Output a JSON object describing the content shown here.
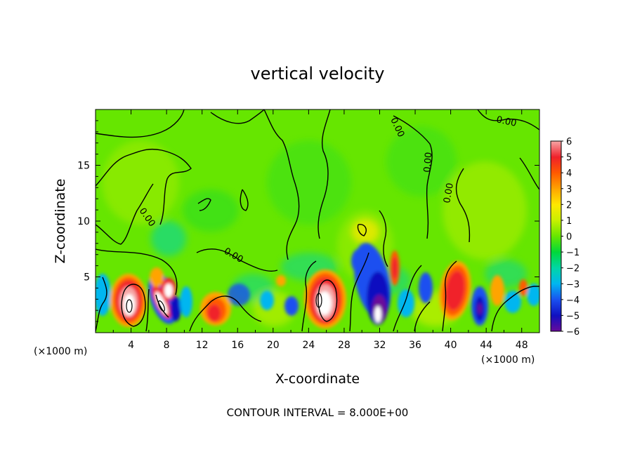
{
  "chart_data": {
    "type": "heatmap",
    "title": "vertical velocity",
    "xlabel": "X-coordinate",
    "ylabel": "Z-coordinate",
    "x_unit": "(×1000 m)",
    "xlim": [
      0,
      50
    ],
    "ylim": [
      0,
      20
    ],
    "x_ticks": [
      4,
      8,
      12,
      16,
      20,
      24,
      28,
      32,
      36,
      40,
      44,
      48
    ],
    "y_ticks": [
      5,
      10,
      15
    ],
    "contour_interval_label": "CONTOUR INTERVAL = 8.000E+00",
    "contour_labels": [
      "0.00",
      "0.00",
      "0.00",
      "0.00",
      "0.00",
      "0.00"
    ],
    "colorbar": {
      "levels": [
        "6",
        "5",
        "4",
        "3",
        "2",
        "1",
        "0",
        "−1",
        "−2",
        "−3",
        "−4",
        "−5",
        "−6"
      ],
      "colors": [
        "#f6a6a6",
        "#f0202a",
        "#ff5a00",
        "#ffa400",
        "#ffe800",
        "#c8f000",
        "#66e600",
        "#00d83a",
        "#00d6a6",
        "#00b6f0",
        "#1a50f0",
        "#1010c0",
        "#6a0a9a"
      ],
      "range": [
        -6,
        6
      ]
    },
    "features": [
      {
        "x": 4,
        "z": 2.5,
        "value": 6
      },
      {
        "x": 8,
        "z": 2.5,
        "value": 6
      },
      {
        "x": 9,
        "z": 3.2,
        "value": -4
      },
      {
        "x": 13.5,
        "z": 2.2,
        "value": 4
      },
      {
        "x": 25.5,
        "z": 2.8,
        "value": 6
      },
      {
        "x": 31.5,
        "z": 2.5,
        "value": -6
      },
      {
        "x": 34,
        "z": 5.5,
        "value": 4
      },
      {
        "x": 40.5,
        "z": 3.8,
        "value": 5
      },
      {
        "x": 43.5,
        "z": 2.2,
        "value": -5
      }
    ]
  }
}
